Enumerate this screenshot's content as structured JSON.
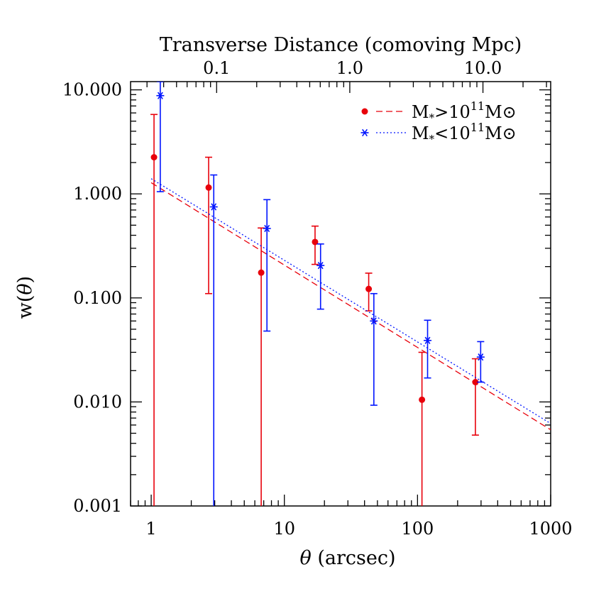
{
  "chart_data": {
    "type": "scatter",
    "xscale": "log",
    "yscale": "log",
    "xlim": [
      0.7,
      1000
    ],
    "ylim": [
      0.001,
      12
    ],
    "xlabel": "θ (arcsec)",
    "ylabel": "w(θ)",
    "top_axis_label": "Transverse Distance (comoving Mpc)",
    "x_ticks": [
      {
        "value": 1,
        "label": "1"
      },
      {
        "value": 10,
        "label": "10"
      },
      {
        "value": 100,
        "label": "100"
      },
      {
        "value": 1000,
        "label": "1000"
      }
    ],
    "y_ticks": [
      {
        "value": 0.001,
        "label": "0.001"
      },
      {
        "value": 0.01,
        "label": "0.010"
      },
      {
        "value": 0.1,
        "label": "0.100"
      },
      {
        "value": 1,
        "label": "1.000"
      },
      {
        "value": 10,
        "label": "10.000"
      }
    ],
    "top_ticks": [
      {
        "theta": 3.1,
        "label": "0.1"
      },
      {
        "theta": 31,
        "label": "1.0"
      },
      {
        "theta": 310,
        "label": "10.0"
      }
    ],
    "legend_position": "top-right",
    "series": [
      {
        "name": "M*>10¹¹M⊙",
        "name_parts": {
          "base": "M",
          "sub": "*",
          "rel": ">10",
          "exp": "11",
          "tail": "M",
          "sun": "⊙"
        },
        "color": "#e8000b",
        "marker": "circle",
        "fit_style": "dashed",
        "fit_line": {
          "x": [
            1,
            1000
          ],
          "y": [
            1.28,
            0.0054
          ]
        },
        "points": [
          {
            "x": 1.05,
            "y": 2.25,
            "ylo": 0.001,
            "yhi": 5.8
          },
          {
            "x": 2.7,
            "y": 1.15,
            "ylo": 0.11,
            "yhi": 2.25
          },
          {
            "x": 6.7,
            "y": 0.175,
            "ylo": 0.001,
            "yhi": 0.47
          },
          {
            "x": 17,
            "y": 0.345,
            "ylo": 0.21,
            "yhi": 0.49
          },
          {
            "x": 43,
            "y": 0.122,
            "ylo": 0.075,
            "yhi": 0.173
          },
          {
            "x": 108,
            "y": 0.0105,
            "ylo": 0.001,
            "yhi": 0.03
          },
          {
            "x": 272,
            "y": 0.0155,
            "ylo": 0.0048,
            "yhi": 0.026
          }
        ]
      },
      {
        "name": "M*<10¹¹M⊙",
        "name_parts": {
          "base": "M",
          "sub": "*",
          "rel": "<10",
          "exp": "11",
          "tail": "M",
          "sun": "⊙"
        },
        "color": "#0014ff",
        "marker": "asterisk",
        "fit_style": "dotted",
        "fit_line": {
          "x": [
            1,
            1000
          ],
          "y": [
            1.4,
            0.0062
          ]
        },
        "points": [
          {
            "x": 1.17,
            "y": 8.8,
            "ylo": 1.05,
            "yhi": 12
          },
          {
            "x": 2.95,
            "y": 0.75,
            "ylo": 0.001,
            "yhi": 1.52
          },
          {
            "x": 7.4,
            "y": 0.465,
            "ylo": 0.048,
            "yhi": 0.88
          },
          {
            "x": 18.7,
            "y": 0.205,
            "ylo": 0.078,
            "yhi": 0.33
          },
          {
            "x": 47,
            "y": 0.06,
            "ylo": 0.0093,
            "yhi": 0.11
          },
          {
            "x": 119,
            "y": 0.039,
            "ylo": 0.017,
            "yhi": 0.061
          },
          {
            "x": 298,
            "y": 0.027,
            "ylo": 0.0155,
            "yhi": 0.038
          }
        ]
      }
    ]
  }
}
